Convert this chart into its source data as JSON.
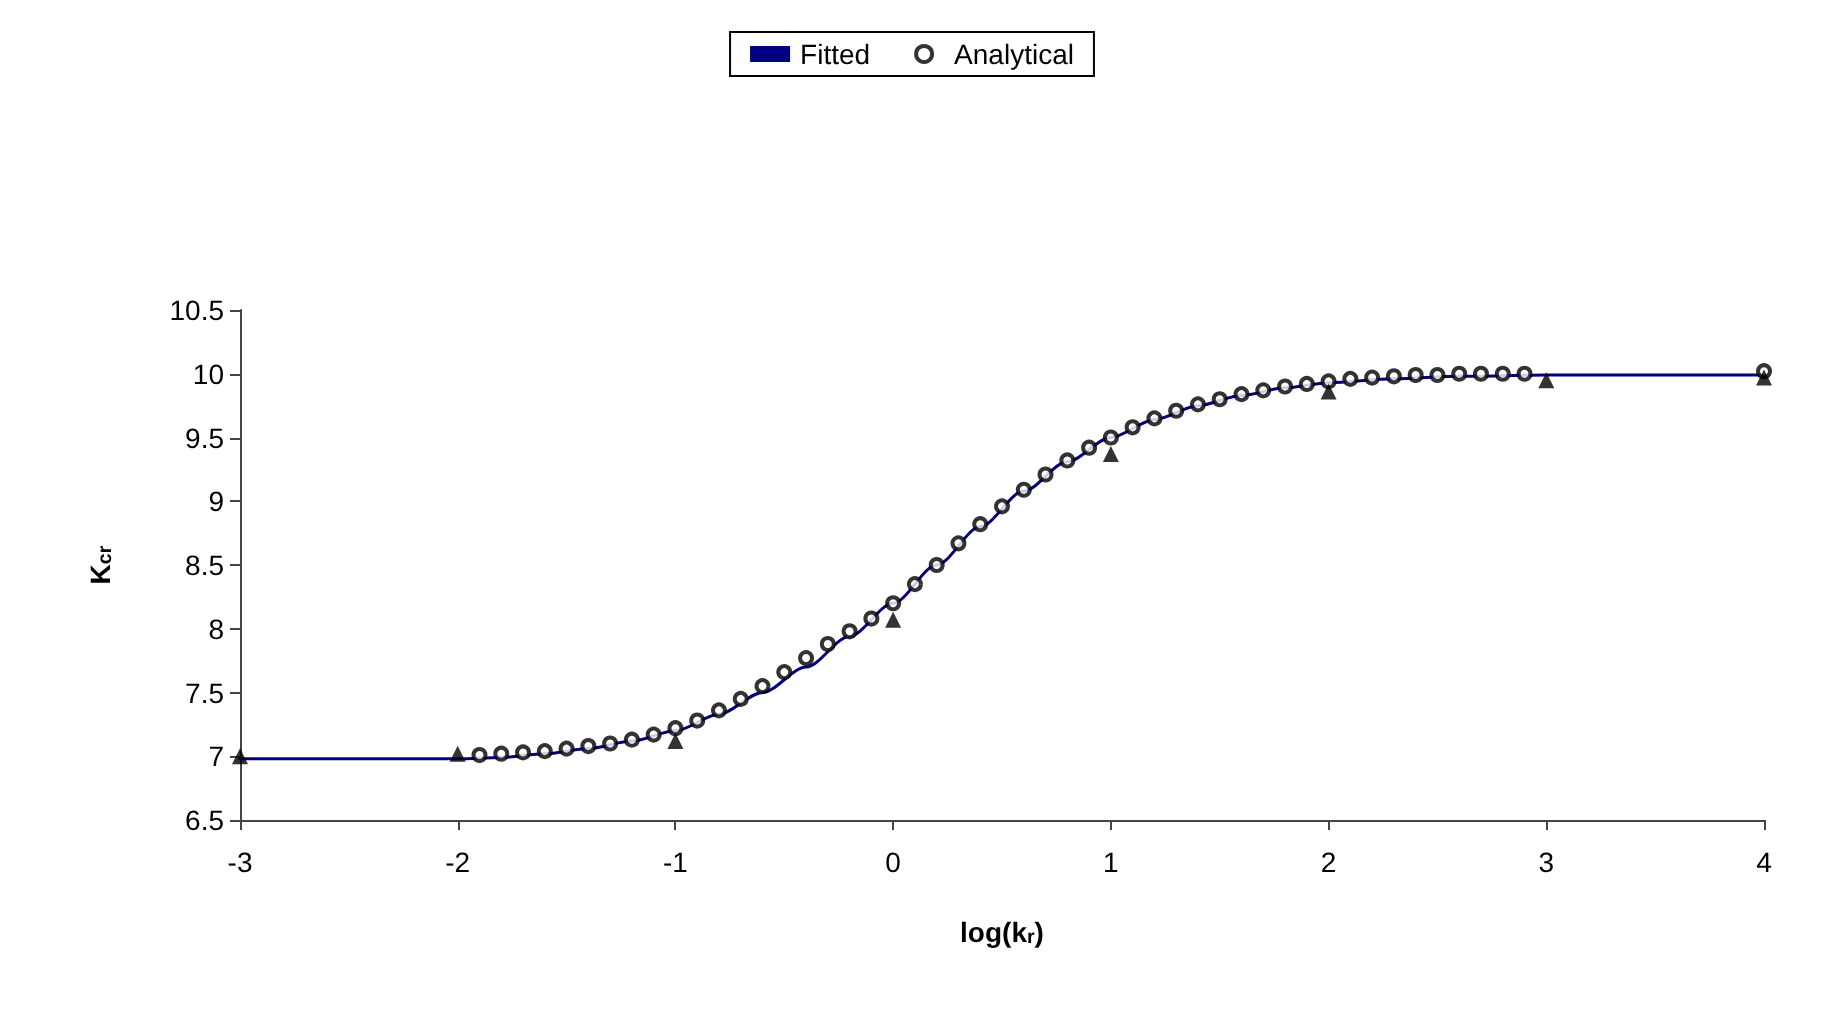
{
  "chart_data": {
    "type": "line",
    "xlabel": "log(k$_{r}$)",
    "ylabel": "K$_{cr}$",
    "xlim": [
      -3,
      4
    ],
    "xticks": [
      -3,
      -2,
      -1,
      0,
      1,
      2,
      3,
      4
    ],
    "ylim": [
      6.5,
      10.5
    ],
    "yticks": [
      6.5,
      7,
      7.5,
      8,
      8.5,
      9,
      9.5,
      10,
      10.5
    ],
    "grid": false,
    "legend": "top",
    "series": [
      {
        "name": "Fitted",
        "color": "#000080",
        "marker": "none",
        "line_style": "solid",
        "x": [
          -3,
          -2,
          -1.8,
          -1.6,
          -1.4,
          -1.2,
          -1,
          -0.8,
          -0.6,
          -0.4,
          -0.2,
          0,
          0.2,
          0.4,
          0.6,
          0.8,
          1,
          1.2,
          1.4,
          1.6,
          1.8,
          2,
          2.3,
          2.6,
          3,
          4
        ],
        "values": [
          6.98,
          6.98,
          6.99,
          7.02,
          7.06,
          7.12,
          7.2,
          7.33,
          7.5,
          7.7,
          7.94,
          8.2,
          8.5,
          8.8,
          9.08,
          9.31,
          9.5,
          9.64,
          9.75,
          9.83,
          9.89,
          9.93,
          9.96,
          9.98,
          9.99,
          9.99
        ]
      },
      {
        "name": "Analytical",
        "type": "scatter",
        "color": "#000000",
        "marker": "circle",
        "x": [
          -1.9,
          -1.8,
          -1.7,
          -1.6,
          -1.5,
          -1.4,
          -1.3,
          -1.2,
          -1.1,
          -1.0,
          -0.9,
          -0.8,
          -0.7,
          -0.6,
          -0.5,
          -0.4,
          -0.3,
          -0.2,
          -0.1,
          0,
          0.1,
          0.2,
          0.3,
          0.4,
          0.5,
          0.6,
          0.7,
          0.8,
          0.9,
          1.0,
          1.1,
          1.2,
          1.3,
          1.4,
          1.5,
          1.6,
          1.7,
          1.8,
          1.9,
          2.0,
          2.1,
          2.2,
          2.3,
          2.4,
          2.5,
          2.6,
          2.7,
          2.8,
          2.9,
          4
        ],
        "values": [
          7.01,
          7.02,
          7.03,
          7.04,
          7.06,
          7.08,
          7.1,
          7.13,
          7.17,
          7.22,
          7.28,
          7.36,
          7.45,
          7.55,
          7.66,
          7.77,
          7.88,
          7.98,
          8.08,
          8.2,
          8.35,
          8.5,
          8.67,
          8.82,
          8.96,
          9.09,
          9.21,
          9.32,
          9.42,
          9.5,
          9.58,
          9.65,
          9.71,
          9.76,
          9.8,
          9.84,
          9.87,
          9.9,
          9.92,
          9.94,
          9.96,
          9.97,
          9.98,
          9.99,
          9.99,
          10.0,
          10.0,
          10.0,
          10.0,
          10.02
        ]
      },
      {
        "type": "scatter",
        "color": "#000000",
        "marker": "triangle",
        "x": [
          -3,
          -2,
          -1,
          0,
          1,
          2,
          3,
          4
        ],
        "values": [
          7.0,
          7.02,
          7.12,
          8.07,
          9.37,
          9.86,
          9.95,
          9.97
        ]
      }
    ]
  }
}
